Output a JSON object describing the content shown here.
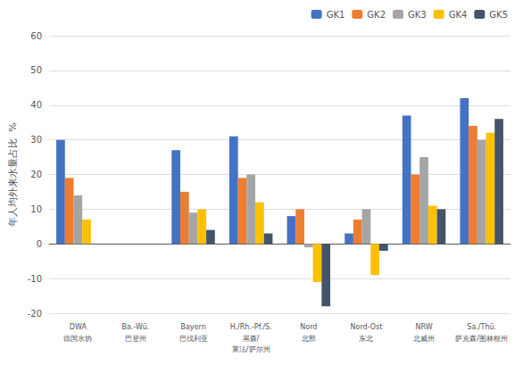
{
  "chart_data": {
    "type": "bar",
    "categories": [
      "DWA",
      "Ba.-Wü.",
      "Bayern",
      "H./Rh.-Pf./S.",
      "Nord",
      "Nord-Ost",
      "NRW",
      "Sa./Thü."
    ],
    "annotations": [
      {
        "x": "DWA",
        "text": "德国水协"
      },
      {
        "x": "Ba.-Wü.",
        "text": "巴登州"
      },
      {
        "x": "Bayern",
        "text": "巴伐利亚"
      },
      {
        "x": "H./Rh.-Pf./S.",
        "text": "黑森/\n莱法/萨尔州"
      },
      {
        "x": "Nord",
        "text": "北部"
      },
      {
        "x": "Nord-Ost",
        "text": "东北"
      },
      {
        "x": "NRW",
        "text": "北威州"
      },
      {
        "x": "Sa./Thü.",
        "text": "萨克森/图林根州"
      }
    ],
    "series": [
      {
        "name": "GK1",
        "color": "#4472C4",
        "values": [
          30,
          0,
          27,
          31,
          8,
          3,
          37,
          42
        ]
      },
      {
        "name": "GK2",
        "color": "#ED7D31",
        "values": [
          19,
          0,
          15,
          19,
          10,
          7,
          20,
          34
        ]
      },
      {
        "name": "GK3",
        "color": "#A5A5A5",
        "values": [
          14,
          0,
          9,
          20,
          -1,
          10,
          25,
          30
        ]
      },
      {
        "name": "GK4",
        "color": "#FFC000",
        "values": [
          7,
          0,
          10,
          12,
          -11,
          -9,
          11,
          32
        ]
      },
      {
        "name": "GK5",
        "color": "#44546A",
        "values": [
          0,
          0,
          4,
          3,
          -18,
          -2,
          10,
          36
        ]
      }
    ],
    "ylabel": "年人均外来水量占比  %",
    "ylim": [
      -20,
      60
    ],
    "yticks": [
      -20,
      -10,
      0,
      10,
      20,
      30,
      40,
      50,
      60
    ],
    "grid": true,
    "legend": "upper right"
  }
}
